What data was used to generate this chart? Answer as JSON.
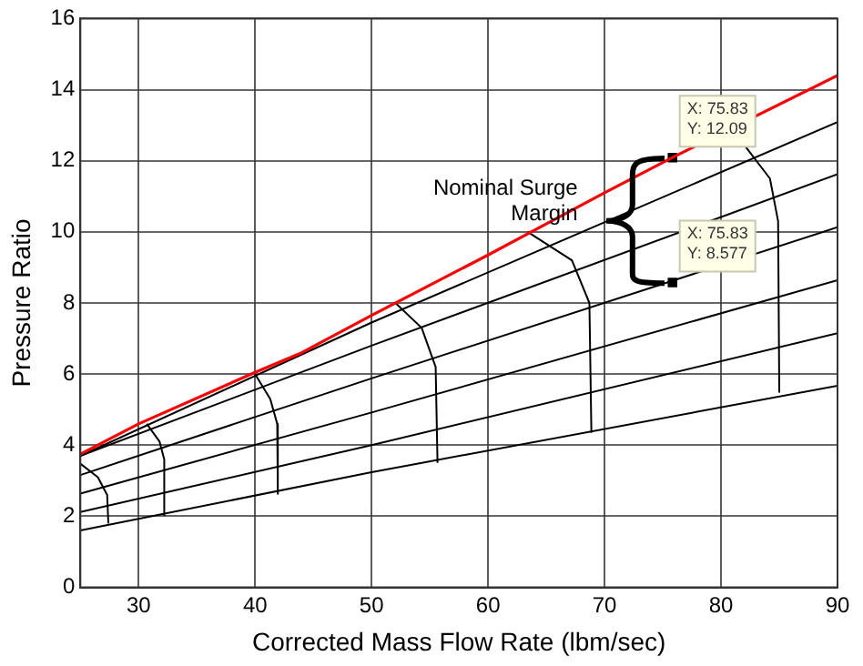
{
  "chart_data": {
    "type": "line",
    "xlabel": "Corrected Mass Flow Rate (lbm/sec)",
    "ylabel": "Pressure Ratio",
    "xlim": [
      25,
      90
    ],
    "xticks": [
      30,
      40,
      50,
      60,
      70,
      80,
      90
    ],
    "ylim": [
      0,
      16
    ],
    "yticks": [
      0,
      2,
      4,
      6,
      8,
      10,
      12,
      14,
      16
    ],
    "grid": true,
    "marker": "none",
    "line_style": "solid",
    "series": [
      {
        "color": "#ff0000",
        "x": [
          25,
          30,
          40,
          44,
          50,
          60,
          70,
          75.83,
          90
        ],
        "values": [
          3.75,
          4.6,
          6.05,
          6.6,
          7.65,
          9.35,
          11.1,
          12.09,
          14.4
        ]
      },
      {
        "color": "#000000",
        "x": [
          25,
          50,
          90
        ],
        "values": [
          3.7,
          7.45,
          13.09
        ]
      },
      {
        "color": "#000000",
        "x": [
          25,
          50,
          90
        ],
        "values": [
          3.7,
          6.8,
          11.62
        ]
      },
      {
        "color": "#000000",
        "x": [
          25,
          50,
          90
        ],
        "values": [
          3.16,
          5.88,
          10.13
        ]
      },
      {
        "color": "#000000",
        "x": [
          25,
          50,
          90
        ],
        "values": [
          2.64,
          4.92,
          8.64
        ]
      },
      {
        "color": "#000000",
        "x": [
          25,
          50,
          90
        ],
        "values": [
          2.12,
          4.0,
          7.15
        ]
      },
      {
        "color": "#000000",
        "x": [
          25,
          50,
          90
        ],
        "values": [
          1.6,
          3.24,
          5.67
        ]
      },
      {
        "color": "#000000",
        "x": [
          25,
          26.5,
          27.3,
          27.4
        ],
        "values": [
          3.48,
          3.1,
          2.6,
          1.8
        ]
      },
      {
        "color": "#000000",
        "x": [
          30.7,
          31.8,
          32.2,
          32.2
        ],
        "values": [
          4.6,
          4.1,
          3.6,
          2.03
        ]
      },
      {
        "color": "#000000",
        "x": [
          40,
          41.3,
          41.9,
          41.95
        ],
        "values": [
          6.0,
          5.3,
          4.6,
          2.63
        ]
      },
      {
        "color": "#000000",
        "x": [
          52.05,
          54.3,
          55.5,
          55.66
        ],
        "values": [
          8.0,
          7.3,
          6.2,
          3.5
        ]
      },
      {
        "color": "#000000",
        "x": [
          63.4,
          67.2,
          68.7,
          68.87
        ],
        "values": [
          10.0,
          9.2,
          8.0,
          4.35
        ]
      },
      {
        "color": "#000000",
        "x": [
          82.1,
          84.2,
          84.9,
          85.0
        ],
        "values": [
          12.4,
          11.5,
          10.3,
          5.48
        ]
      },
      {
        "type": "scatter",
        "marker": "square",
        "color": "#000000",
        "x": [
          75.83,
          75.83
        ],
        "values": [
          12.09,
          8.577
        ]
      }
    ],
    "annotations": [
      "Nominal Surge Margin",
      {
        "text": "X: 75.83\nY: 12.09",
        "x": 75.83,
        "y": 12.09
      },
      {
        "text": "X: 75.83\nY: 8.577",
        "x": 75.83,
        "y": 8.577
      }
    ]
  }
}
